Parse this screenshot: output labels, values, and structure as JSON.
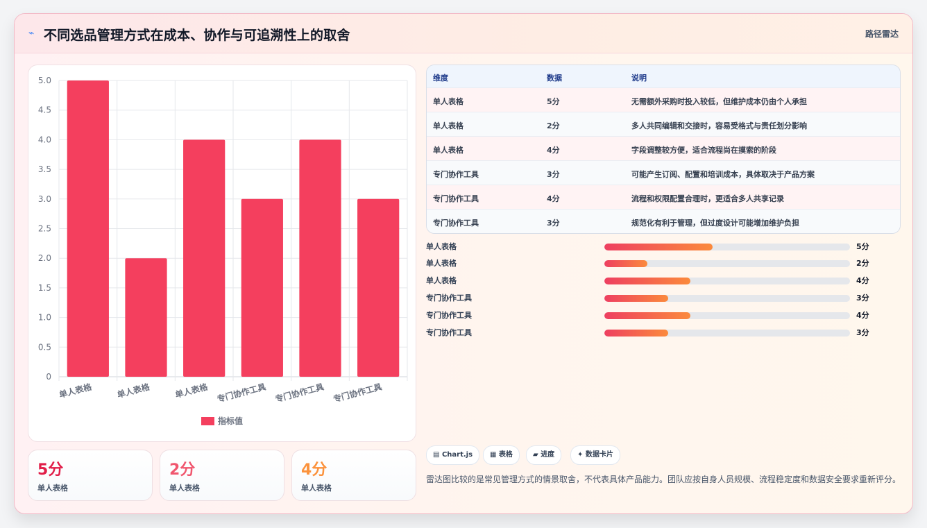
{
  "header": {
    "icon": "trend-line-icon",
    "icon_glyph": "⌁",
    "title": "不同选品管理方式在成本、协作与可追溯性上的取舍",
    "right_link": "路径雷达"
  },
  "chart_data": {
    "type": "bar",
    "categories": [
      "单人表格",
      "单人表格",
      "单人表格",
      "专门协作工具",
      "专门协作工具",
      "专门协作工具"
    ],
    "series": [
      {
        "name": "指标值",
        "values": [
          5,
          2,
          4,
          3,
          4,
          3
        ],
        "color": "#f43f5e"
      }
    ],
    "ylim": [
      0,
      5
    ],
    "yticks": [
      "0",
      "0.5",
      "1.0",
      "1.5",
      "2.0",
      "2.5",
      "3.0",
      "3.5",
      "4.0",
      "4.5",
      "5.0"
    ],
    "grid": true,
    "legend_position": "bottom"
  },
  "stats": [
    {
      "value": "5分",
      "label": "单人表格",
      "color": "#e11d48"
    },
    {
      "value": "2分",
      "label": "单人表格",
      "color": "#f0566e"
    },
    {
      "value": "4分",
      "label": "单人表格",
      "color": "#fb923c"
    }
  ],
  "table": {
    "headers": [
      "维度",
      "数据",
      "说明"
    ],
    "rows": [
      [
        "单人表格",
        "5分",
        "无需额外采购时投入较低，但维护成本仍由个人承担"
      ],
      [
        "单人表格",
        "2分",
        "多人共同编辑和交接时，容易受格式与责任划分影响"
      ],
      [
        "单人表格",
        "4分",
        "字段调整较方便，适合流程尚在摸索的阶段"
      ],
      [
        "专门协作工具",
        "3分",
        "可能产生订阅、配置和培训成本，具体取决于产品方案"
      ],
      [
        "专门协作工具",
        "4分",
        "流程和权限配置合理时，更适合多人共享记录"
      ],
      [
        "专门协作工具",
        "3分",
        "规范化有利于管理，但过度设计可能增加维护负担"
      ]
    ],
    "row_colors": [
      "#fff3f4",
      "#f8fafc"
    ]
  },
  "progress": [
    {
      "label": "单人表格",
      "value": "5分",
      "fraction": 0.44
    },
    {
      "label": "单人表格",
      "value": "2分",
      "fraction": 0.175
    },
    {
      "label": "单人表格",
      "value": "4分",
      "fraction": 0.35
    },
    {
      "label": "专门协作工具",
      "value": "3分",
      "fraction": 0.26
    },
    {
      "label": "专门协作工具",
      "value": "4分",
      "fraction": 0.35
    },
    {
      "label": "专门协作工具",
      "value": "3分",
      "fraction": 0.26
    }
  ],
  "tags": [
    {
      "icon": "chart-icon",
      "glyph": "▤",
      "label": "Chart.js"
    },
    {
      "icon": "table-icon",
      "glyph": "▦",
      "label": "表格"
    },
    {
      "icon": "folder-icon",
      "glyph": "▰",
      "label": "进度"
    },
    {
      "icon": "sparkle-icon",
      "glyph": "✦",
      "label": "数据卡片"
    }
  ],
  "note": "雷达图比较的是常见管理方式的情景取舍，不代表具体产品能力。团队应按自身人员规模、流程稳定度和数据安全要求重新评分。"
}
